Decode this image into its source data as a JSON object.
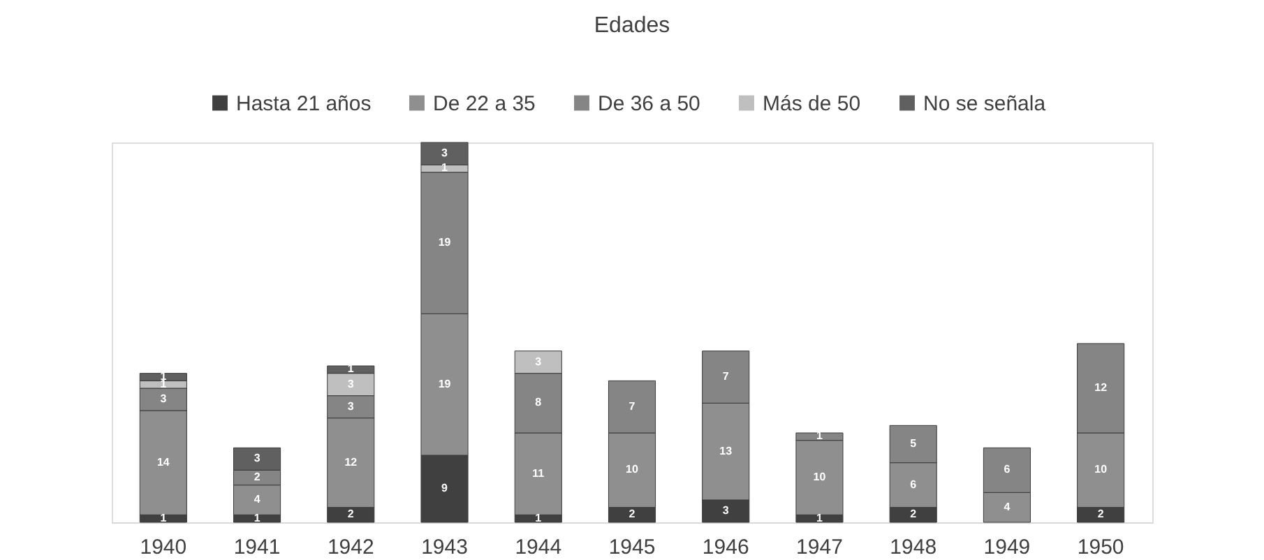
{
  "chart_data": {
    "type": "bar",
    "title": "Edades",
    "stacked": true,
    "data_labels": true,
    "legend": "top",
    "categories": [
      "1940",
      "1941",
      "1942",
      "1943",
      "1944",
      "1945",
      "1946",
      "1947",
      "1948",
      "1949",
      "1950"
    ],
    "series": [
      {
        "name": "Hasta 21 años",
        "color": "#404040",
        "values": [
          1,
          1,
          2,
          9,
          1,
          2,
          3,
          1,
          2,
          null,
          2
        ]
      },
      {
        "name": "De 22 a 35",
        "color": "#8f8f8f",
        "values": [
          14,
          4,
          12,
          19,
          11,
          10,
          13,
          10,
          6,
          4,
          10
        ]
      },
      {
        "name": "De 36 a 50",
        "color": "#858585",
        "values": [
          3,
          2,
          3,
          19,
          8,
          7,
          7,
          1,
          5,
          6,
          12
        ]
      },
      {
        "name": "Más de 50",
        "color": "#bfbfbf",
        "values": [
          1,
          null,
          3,
          1,
          3,
          null,
          null,
          null,
          null,
          null,
          null
        ]
      },
      {
        "name": "No se señala",
        "color": "#606060",
        "values": [
          1,
          3,
          1,
          3,
          null,
          null,
          null,
          null,
          null,
          null,
          null
        ]
      }
    ]
  }
}
